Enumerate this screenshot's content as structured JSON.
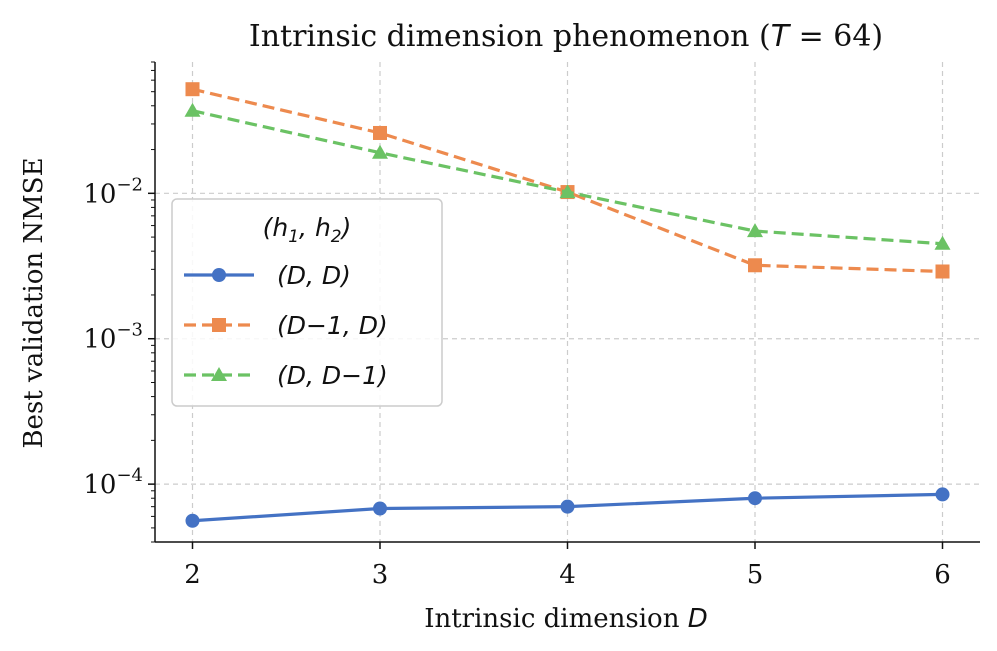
{
  "chart_data": {
    "type": "line",
    "title": "Intrinsic dimension phenomenon (",
    "title_var": "T",
    "title_eq": " = 64)",
    "xlabel": "Intrinsic dimension ",
    "xlabel_var": "D",
    "ylabel": "Best validation NMSE",
    "yscale": "log",
    "x": [
      2,
      3,
      4,
      5,
      6
    ],
    "xlim": [
      1.8,
      6.2
    ],
    "ylim": [
      4e-05,
      0.08
    ],
    "x_ticks": [
      "2",
      "3",
      "4",
      "5",
      "6"
    ],
    "y_ticks": [
      {
        "base": "10",
        "exp": "−2",
        "value": 0.01
      },
      {
        "base": "10",
        "exp": "−3",
        "value": 0.001
      },
      {
        "base": "10",
        "exp": "−4",
        "value": 0.0001
      }
    ],
    "grid": true,
    "legend": {
      "placement": "center-left",
      "title": "(h1, h2)",
      "entries": [
        "(D, D)",
        "(D−1, D)",
        "(D, D−1)"
      ]
    },
    "series": [
      {
        "name": "(D, D)",
        "values": [
          5.6e-05,
          6.8e-05,
          7e-05,
          8e-05,
          8.5e-05
        ],
        "color": "#4472c4",
        "dash": false,
        "marker": "circle"
      },
      {
        "name": "(D−1, D)",
        "values": [
          0.052,
          0.026,
          0.0102,
          0.0032,
          0.0029
        ],
        "color": "#ed8a4e",
        "dash": true,
        "marker": "square"
      },
      {
        "name": "(D, D−1)",
        "values": [
          0.037,
          0.019,
          0.0102,
          0.0055,
          0.0045
        ],
        "color": "#6bc264",
        "dash": true,
        "marker": "triangle"
      }
    ]
  }
}
